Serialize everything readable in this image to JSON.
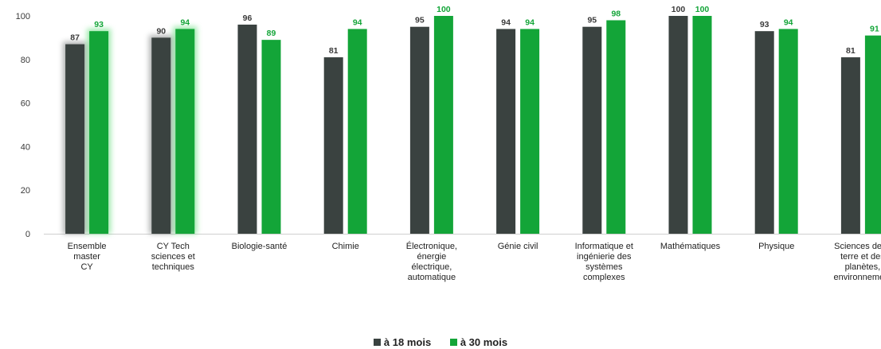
{
  "chart_data": {
    "type": "bar",
    "categories": [
      [
        "Ensemble",
        "master",
        "CY"
      ],
      [
        "CY Tech",
        "sciences et",
        "techniques"
      ],
      [
        "Biologie-santé"
      ],
      [
        "Chimie"
      ],
      [
        "Électronique,",
        "énergie",
        "électrique,",
        "automatique"
      ],
      [
        "Génie civil"
      ],
      [
        "Informatique et",
        "ingénierie des",
        "systèmes",
        "complexes"
      ],
      [
        "Mathématiques"
      ],
      [
        "Physique"
      ],
      [
        "Sciences de la",
        "terre et des",
        "planètes,",
        "environnement"
      ]
    ],
    "series": [
      {
        "name": "à 18 mois",
        "color": "#3a4240",
        "values": [
          87,
          90,
          96,
          81,
          95,
          94,
          95,
          100,
          93,
          81
        ]
      },
      {
        "name": "à 30 mois",
        "color": "#13a538",
        "values": [
          93,
          94,
          89,
          94,
          100,
          94,
          98,
          100,
          94,
          91
        ]
      }
    ],
    "highlighted_categories": [
      0,
      1
    ],
    "yticks": [
      "0",
      "20",
      "40",
      "60",
      "80",
      "100"
    ],
    "ylim": [
      0,
      100
    ],
    "grid": false,
    "legend_position": "bottom"
  }
}
